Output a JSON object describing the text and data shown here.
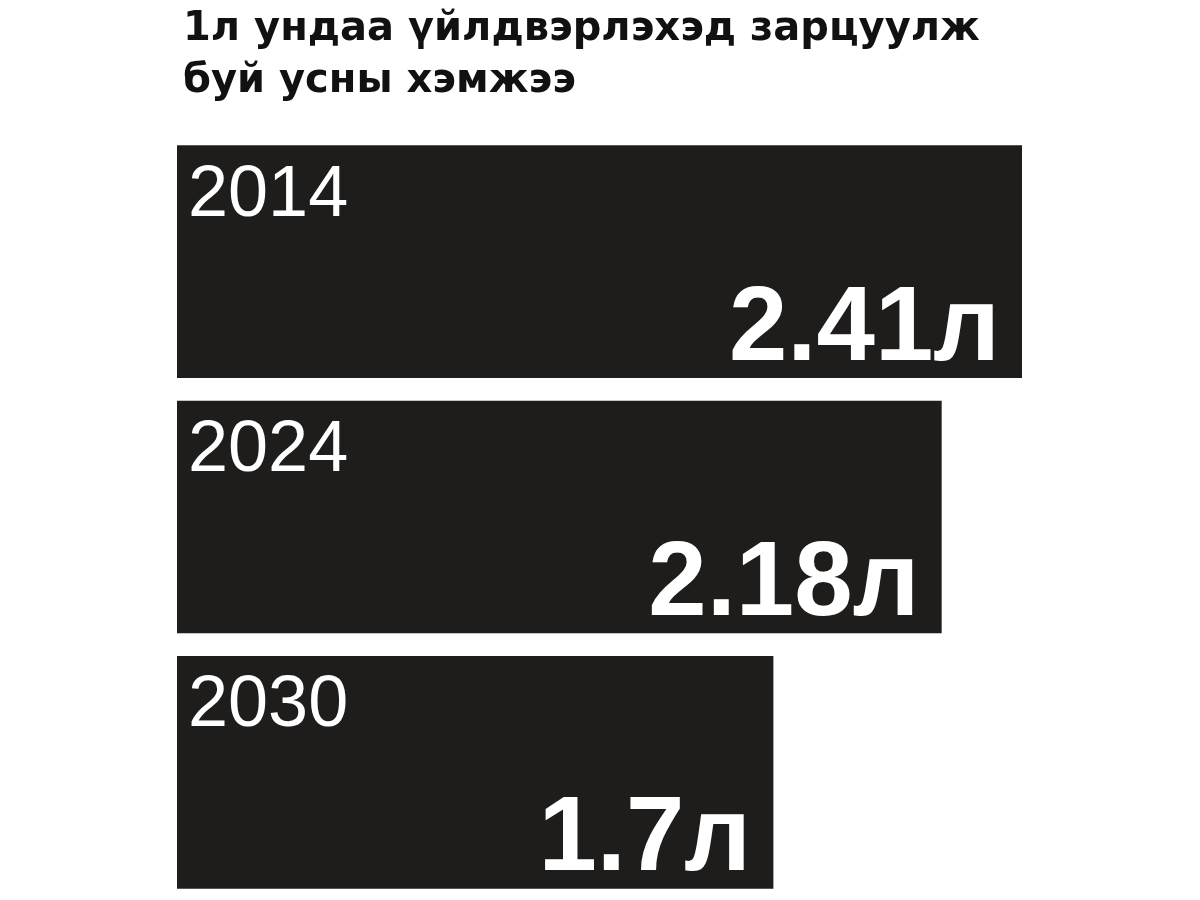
{
  "chart_data": {
    "type": "bar",
    "orientation": "horizontal",
    "title": "1л ундаа үйлдвэрлэхэд зарцуулж буй усны хэмжээ",
    "categories": [
      "2014",
      "2024",
      "2030"
    ],
    "values": [
      2.41,
      2.18,
      1.7
    ],
    "value_labels": [
      "2.41л",
      "2.18л",
      "1.7л"
    ],
    "color": "#1f1d1c",
    "tick_labels": "y"
  }
}
